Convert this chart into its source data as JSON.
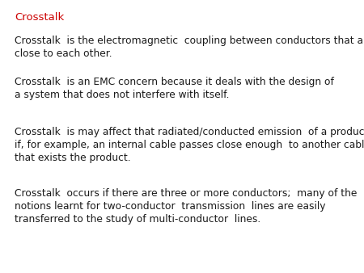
{
  "title": "Crosstalk",
  "title_color": "#cc0000",
  "background_color": "#ffffff",
  "title_fontsize": 9.5,
  "body_fontsize": 8.8,
  "body_color": "#1a1a1a",
  "paragraphs": [
    "Crosstalk  is the electromagnetic  coupling between conductors that are\nclose to each other.",
    "Crosstalk  is an EMC concern because it deals with the design of\na system that does not interfere with itself.",
    "Crosstalk  is may affect that radiated/conducted emission  of a product\nif, for example, an internal cable passes close enough  to another cable\nthat exists the product.",
    "Crosstalk  occurs if there are three or more conductors;  many of the\nnotions learnt for two-conductor  transmission  lines are easily\ntransferred to the study of multi-conductor  lines."
  ]
}
